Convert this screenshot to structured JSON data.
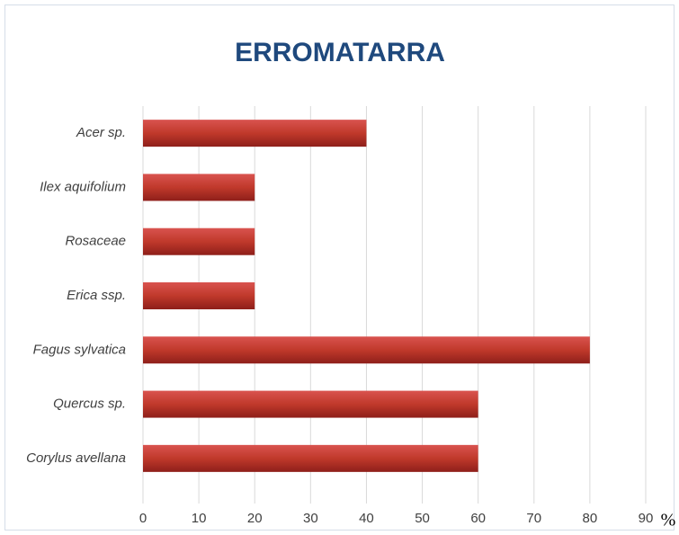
{
  "chart_data": {
    "type": "bar",
    "orientation": "horizontal",
    "title": "ERROMATARRA",
    "x_label": "%",
    "categories": [
      "Acer sp.",
      "Ilex aquifolium",
      "Rosaceae",
      "Erica ssp.",
      "Fagus sylvatica",
      "Quercus sp.",
      "Corylus avellana"
    ],
    "values": [
      40,
      20,
      20,
      20,
      80,
      60,
      60
    ],
    "color": "#c0504d",
    "xlim": [
      0,
      90
    ],
    "xticks": [
      0,
      10,
      20,
      30,
      40,
      50,
      60,
      70,
      80,
      90
    ],
    "grid": true
  }
}
